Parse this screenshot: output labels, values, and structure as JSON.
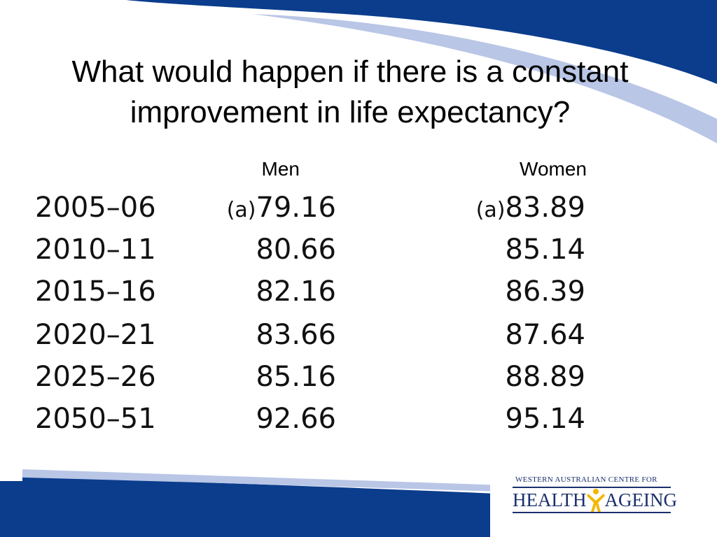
{
  "slide": {
    "title_line1": "What would happen if there is a constant",
    "title_line2": "improvement in life expectancy?"
  },
  "table": {
    "headers": {
      "men": "Men",
      "women": "Women"
    },
    "rows": [
      {
        "period": "2005–06",
        "men_note": "(a)",
        "men": "79.16",
        "women_note": "(a)",
        "women": "83.89"
      },
      {
        "period": "2010–11",
        "men_note": "",
        "men": "80.66",
        "women_note": "",
        "women": "85.14"
      },
      {
        "period": "2015–16",
        "men_note": "",
        "men": "82.16",
        "women_note": "",
        "women": "86.39"
      },
      {
        "period": "2020–21",
        "men_note": "",
        "men": "83.66",
        "women_note": "",
        "women": "87.64"
      },
      {
        "period": "2025–26",
        "men_note": "",
        "men": "85.16",
        "women_note": "",
        "women": "88.89"
      },
      {
        "period": "2050–51",
        "men_note": "",
        "men": "92.66",
        "women_note": "",
        "women": "95.14"
      }
    ]
  },
  "logo": {
    "top_text": "WESTERN AUSTRALIAN CENTRE FOR",
    "word_left": "HEALTH",
    "word_right": "AGEING"
  },
  "colors": {
    "banner_dark": "#0b3d8c",
    "banner_light": "#b9c6e6",
    "logo_navy": "#1b2f6e",
    "logo_figure": "#f2b705"
  }
}
